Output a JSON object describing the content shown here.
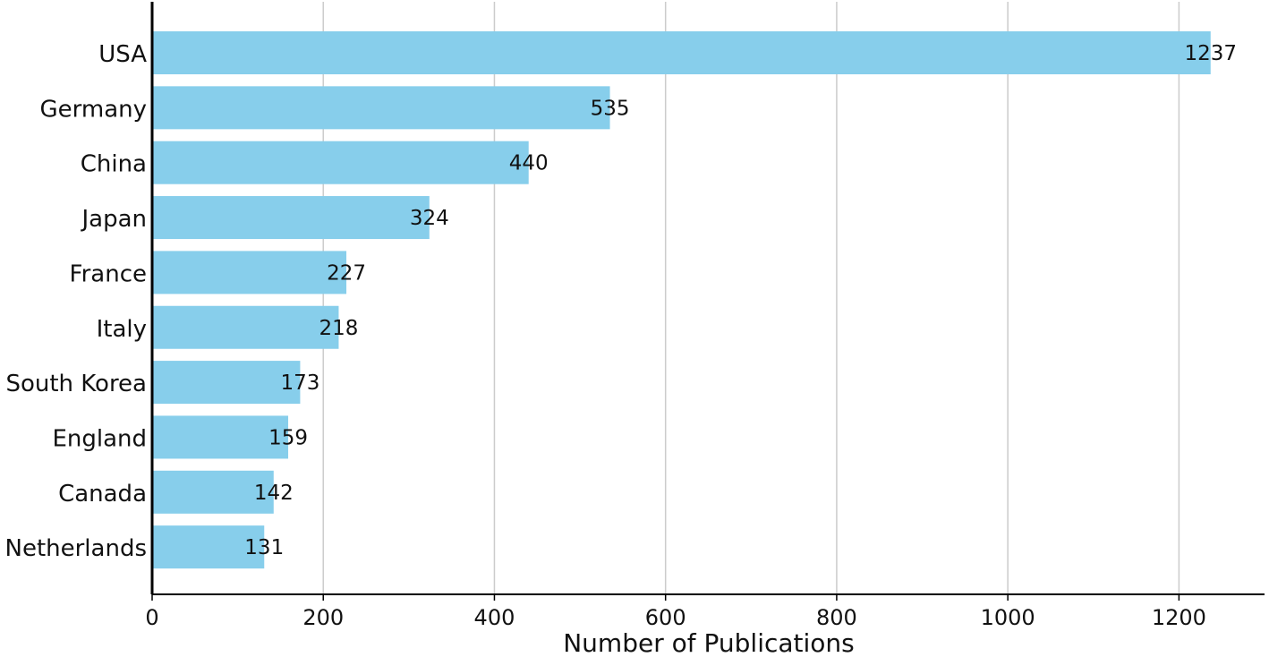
{
  "chart_data": {
    "type": "bar",
    "orientation": "horizontal",
    "categories": [
      "USA",
      "Germany",
      "China",
      "Japan",
      "France",
      "Italy",
      "South Korea",
      "England",
      "Canada",
      "Netherlands"
    ],
    "values": [
      1237,
      535,
      440,
      324,
      227,
      218,
      173,
      159,
      142,
      131
    ],
    "value_labels": [
      "1237",
      "535",
      "440",
      "324",
      "227",
      "218",
      "173",
      "159",
      "142",
      "131"
    ],
    "xlabel": "Number of Publications",
    "ylabel": "",
    "title": "",
    "xlim": [
      0,
      1300
    ],
    "x_ticks": [
      0,
      200,
      400,
      600,
      800,
      1000,
      1200
    ],
    "x_tick_labels": [
      "0",
      "200",
      "400",
      "600",
      "800",
      "1000",
      "1200"
    ],
    "grid": "vertical",
    "legend": "none",
    "colors": {
      "bar": "#87ceeb",
      "grid": "#cccccc",
      "axis": "#000000",
      "text": "#111111"
    }
  }
}
